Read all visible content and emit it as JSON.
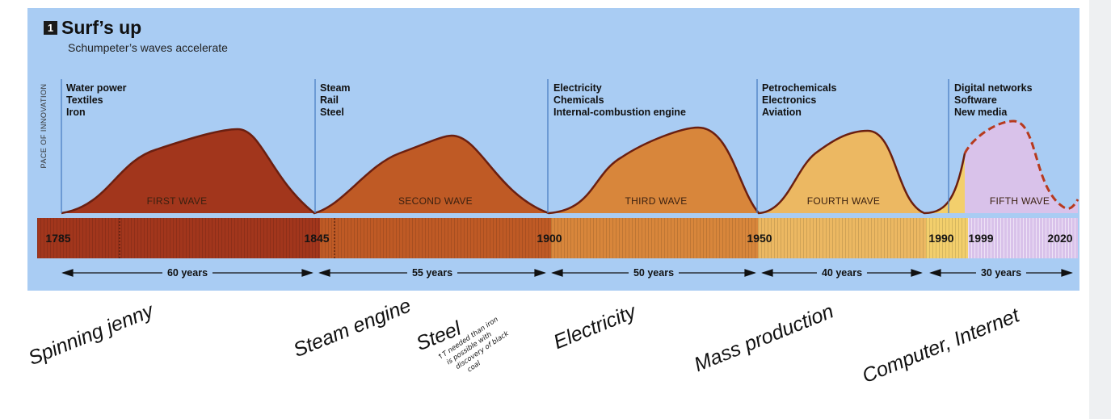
{
  "figure": {
    "badge": "1",
    "title": "Surf’s up",
    "subtitle": "Schumpeter’s waves accelerate",
    "y_axis_label": "PACE OF INNOVATION"
  },
  "waves": [
    {
      "name": "FIRST WAVE",
      "technologies": [
        "Water power",
        "Textiles",
        "Iron"
      ],
      "start": 1785,
      "end": 1845,
      "duration": "60 years",
      "color": "#a2361c"
    },
    {
      "name": "SECOND WAVE",
      "technologies": [
        "Steam",
        "Rail",
        "Steel"
      ],
      "start": 1845,
      "end": 1900,
      "duration": "55 years",
      "color": "#bf5a25"
    },
    {
      "name": "THIRD WAVE",
      "technologies": [
        "Electricity",
        "Chemicals",
        "Internal-combustion engine"
      ],
      "start": 1900,
      "end": 1950,
      "duration": "50 years",
      "color": "#d8863b"
    },
    {
      "name": "FOURTH WAVE",
      "technologies": [
        "Petrochemicals",
        "Electronics",
        "Aviation"
      ],
      "start": 1950,
      "end": 1990,
      "duration": "40 years",
      "color": "#ecb862"
    },
    {
      "name": "FIFTH WAVE",
      "technologies": [
        "Digital networks",
        "Software",
        "New media"
      ],
      "start": 1990,
      "end": 2020,
      "duration": "30 years",
      "color": "#d9c2ea"
    }
  ],
  "timeline_years": [
    "1785",
    "1845",
    "1900",
    "1950",
    "1990",
    "1999",
    "2020"
  ],
  "annotations": {
    "handwritten": [
      "Spinning jenny",
      "Steam engine",
      "Steel",
      "Electricity",
      "Mass production",
      "Computer, Internet"
    ],
    "steel_note": [
      "↑T needed than iron",
      "is possible with",
      "discovery of black",
      "coal"
    ]
  }
}
